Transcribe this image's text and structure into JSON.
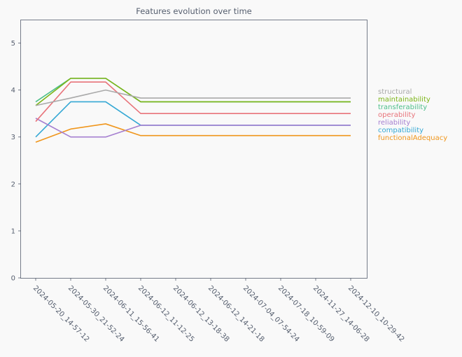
{
  "chart_data": {
    "type": "line",
    "title": "Features evolution over time",
    "xlabel": "",
    "ylabel": "",
    "ylim": [
      0,
      5.5
    ],
    "yticks": [
      0,
      1,
      2,
      3,
      4,
      5
    ],
    "grid": false,
    "legend_position": "right",
    "categories": [
      "2024-05-20_14-57-12",
      "2024-05-30_21-52-24",
      "2024-06-11_15-56-41",
      "2024-06-12_11-12-25",
      "2024-06-12_13-18-38",
      "2024-06-12_14-21-18",
      "2024-07-04_07-54-24",
      "2024-07-18_10-59-09",
      "2024-11-27_14-06-28",
      "2024-12-10_10-29-42"
    ],
    "series": [
      {
        "name": "structural",
        "color": "#aaaaaa",
        "values": [
          3.67,
          3.83,
          4.0,
          3.83,
          3.83,
          3.83,
          3.83,
          3.83,
          3.83,
          3.83
        ]
      },
      {
        "name": "maintainability",
        "color": "#7cb518",
        "values": [
          3.67,
          4.25,
          4.25,
          3.75,
          3.75,
          3.75,
          3.75,
          3.75,
          3.75,
          3.75
        ]
      },
      {
        "name": "transferability",
        "color": "#4dbf8a",
        "values": [
          3.75,
          4.25,
          4.25,
          3.75,
          3.75,
          3.75,
          3.75,
          3.75,
          3.75,
          3.75
        ]
      },
      {
        "name": "operability",
        "color": "#e8737a",
        "values": [
          3.33,
          4.17,
          4.17,
          3.5,
          3.5,
          3.5,
          3.5,
          3.5,
          3.5,
          3.5
        ]
      },
      {
        "name": "reliability",
        "color": "#a57fd0",
        "values": [
          3.4,
          3.0,
          3.0,
          3.25,
          3.25,
          3.25,
          3.25,
          3.25,
          3.25,
          3.25
        ]
      },
      {
        "name": "compatibility",
        "color": "#35a8d4",
        "values": [
          3.0,
          3.75,
          3.75,
          3.25,
          3.25,
          3.25,
          3.25,
          3.25,
          3.25,
          3.25
        ]
      },
      {
        "name": "functionalAdequacy",
        "color": "#f0961c",
        "values": [
          2.89,
          3.17,
          3.28,
          3.03,
          3.03,
          3.03,
          3.03,
          3.03,
          3.03,
          3.03
        ]
      }
    ]
  }
}
